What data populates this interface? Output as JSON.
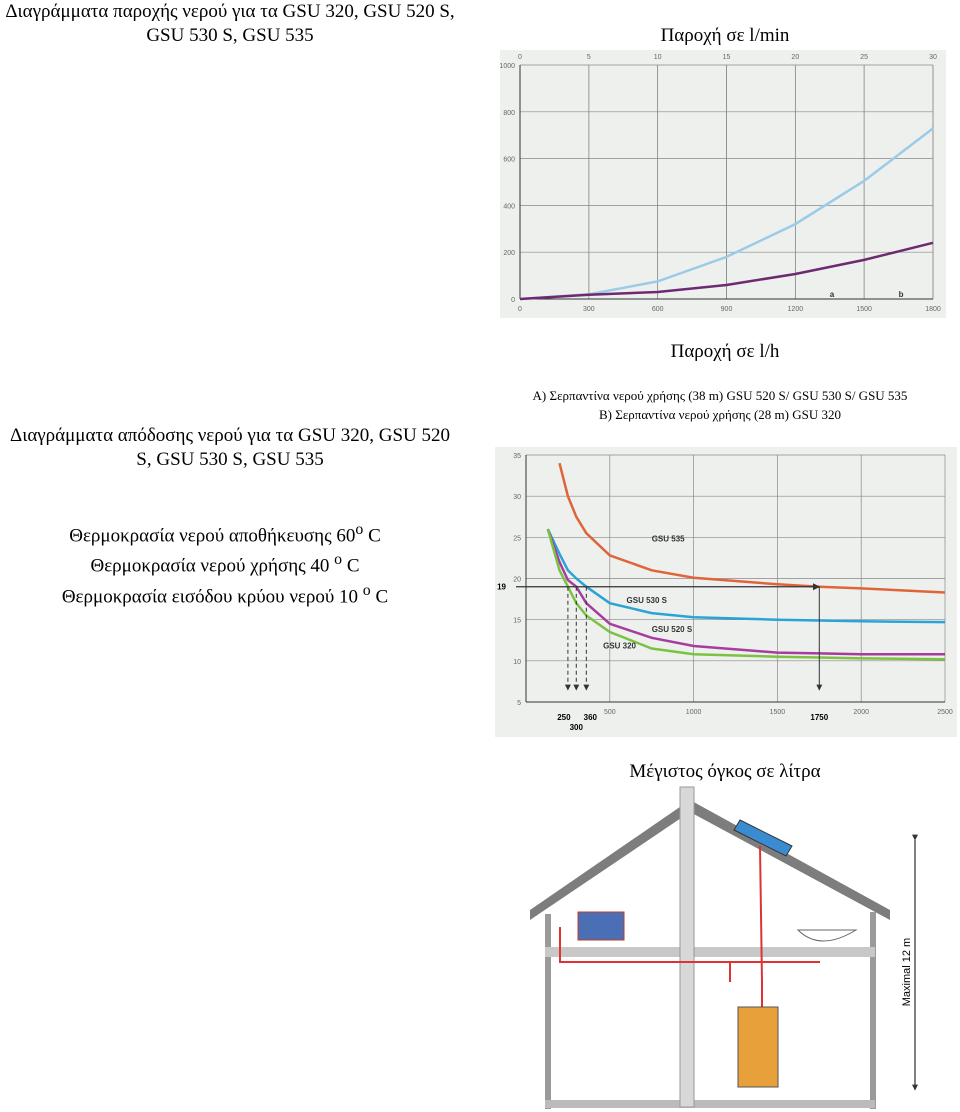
{
  "texts": {
    "supply_heading": "Διαγράμματα παροχής νερού για τα GSU 320,  GSU 520 S, GSU 530 S, GSU 535",
    "output_heading": "Διαγράμματα απόδοσης νερού για τα GSU 320,  GSU 520 S, GSU 530 S, GSU 535",
    "conditions": [
      {
        "text": "Θερμοκρασία νερού αποθήκευσης 60",
        "sup": "o",
        "unit": "C"
      },
      {
        "text": "Θερμοκρασία νερού χρήσης 40",
        "sup": "o",
        "unit": "C"
      },
      {
        "text": "Θερμοκρασία εισόδου κρύου νερού 10",
        "sup": "o",
        "unit": "C"
      }
    ]
  },
  "chart_data": [
    {
      "type": "line",
      "title": "Παροχή σε l/min",
      "xlabel": "Παροχή σε l/h",
      "x": [
        0,
        300,
        600,
        900,
        1200,
        1500,
        1800
      ],
      "series": [
        {
          "name": "a",
          "color": "#9ccbe8",
          "values": [
            0,
            20,
            75,
            180,
            320,
            505,
            729
          ]
        },
        {
          "name": "b",
          "color": "#6e2a70",
          "values": [
            0,
            18,
            30,
            60,
            107,
            167,
            240
          ]
        }
      ],
      "xlim": [
        0,
        1800
      ],
      "xticks": [
        0,
        300,
        600,
        900,
        1200,
        1500,
        1800
      ],
      "x2lim": [
        0,
        30
      ],
      "x2ticks": [
        0,
        5,
        10,
        15,
        20,
        25,
        30
      ],
      "ylim": [
        0,
        1000
      ],
      "yticks": [
        0,
        200,
        400,
        600,
        800,
        1000
      ],
      "grid": true
    },
    {
      "type": "line",
      "notes": [
        "A) Σερπαντίνα νερού χρήσης (38 m) GSU 520 S/ GSU 530 S/ GSU 535",
        "B) Σερπαντίνα νερού χρήσης (28 m) GSU 320"
      ],
      "xlabel": "Μέγιστος όγκος σε λίτρα",
      "x": [
        130,
        200,
        250,
        300,
        360,
        500,
        750,
        1000,
        1500,
        1750,
        2000,
        2500
      ],
      "series": [
        {
          "name": "GSU 535",
          "color": "#e0643a",
          "values": [
            null,
            34,
            30,
            27.5,
            25.5,
            22.8,
            21,
            20.1,
            19.3,
            19,
            18.8,
            18.3
          ]
        },
        {
          "name": "GSU 530 S",
          "color": "#2ba3d6",
          "values": [
            26,
            23,
            21,
            20,
            19,
            17,
            15.8,
            15.3,
            15,
            14.9,
            14.8,
            14.7
          ]
        },
        {
          "name": "GSU 520 S",
          "color": "#a63d9e",
          "values": [
            26,
            22,
            19.8,
            19,
            17,
            14.5,
            12.8,
            11.8,
            11,
            10.9,
            10.8,
            10.8
          ]
        },
        {
          "name": "GSU 320",
          "color": "#7cc242",
          "values": [
            26,
            21,
            19,
            17,
            15.5,
            13.5,
            11.5,
            10.8,
            10.5,
            10.4,
            10.3,
            10.2
          ]
        }
      ],
      "xlim": [
        0,
        2500
      ],
      "xticks": [
        500,
        1000,
        1500,
        2000,
        2500
      ],
      "ylim": [
        5,
        35
      ],
      "yticks": [
        5,
        10,
        15,
        20,
        25,
        30,
        35
      ],
      "grid": true,
      "reference_y": 19,
      "reference_x": [
        250,
        300,
        360,
        1750
      ]
    }
  ],
  "diagram": {
    "height_label": "Maximal 12 m"
  }
}
